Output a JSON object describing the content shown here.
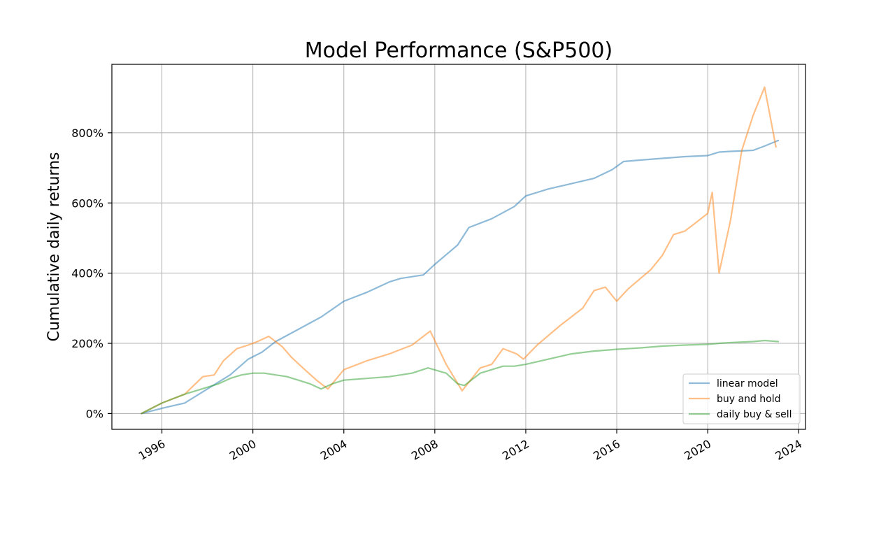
{
  "chart_data": {
    "type": "line",
    "title": "Model Performance (S&P500)",
    "xlabel": "",
    "ylabel": "Cumulative daily returns",
    "xlim": [
      1993.8,
      2024.3
    ],
    "ylim": [
      -0.45,
      9.95
    ],
    "x_ticks": [
      1996,
      2000,
      2004,
      2008,
      2012,
      2016,
      2020,
      2024
    ],
    "x_tick_labels": [
      "1996",
      "2000",
      "2004",
      "2008",
      "2012",
      "2016",
      "2020",
      "2024"
    ],
    "y_ticks": [
      0,
      2,
      4,
      6,
      8
    ],
    "y_tick_labels": [
      "0%",
      "200%",
      "400%",
      "600%",
      "800%"
    ],
    "grid": true,
    "legend_position": "lower-right",
    "series": [
      {
        "name": "linear model",
        "color": "#1f77b4",
        "x": [
          1995.1,
          1996.0,
          1997.0,
          1998.0,
          1999.0,
          1999.8,
          2000.4,
          2001.0,
          2002.0,
          2003.0,
          2004.0,
          2005.0,
          2006.0,
          2006.5,
          2007.5,
          2008.0,
          2009.0,
          2009.5,
          2010.5,
          2011.5,
          2012.0,
          2013.0,
          2014.0,
          2015.0,
          2015.8,
          2016.3,
          2017.0,
          2018.0,
          2019.0,
          2020.0,
          2020.5,
          2021.0,
          2022.0,
          2022.5,
          2023.1
        ],
        "y": [
          0.0,
          0.15,
          0.3,
          0.7,
          1.1,
          1.55,
          1.75,
          2.05,
          2.4,
          2.75,
          3.2,
          3.45,
          3.75,
          3.85,
          3.95,
          4.25,
          4.8,
          5.3,
          5.55,
          5.9,
          6.2,
          6.4,
          6.55,
          6.7,
          6.95,
          7.18,
          7.22,
          7.27,
          7.32,
          7.35,
          7.45,
          7.47,
          7.5,
          7.62,
          7.78
        ]
      },
      {
        "name": "buy and hold",
        "color": "#ff7f0e",
        "x": [
          1995.1,
          1996.0,
          1997.0,
          1997.8,
          1998.3,
          1998.7,
          1999.3,
          1999.8,
          2000.2,
          2000.7,
          2001.3,
          2001.7,
          2002.2,
          2002.8,
          2003.3,
          2004.0,
          2005.0,
          2006.0,
          2007.0,
          2007.8,
          2008.5,
          2009.2,
          2010.0,
          2010.5,
          2011.0,
          2011.6,
          2011.9,
          2012.5,
          2013.5,
          2014.5,
          2015.0,
          2015.5,
          2016.0,
          2016.5,
          2017.5,
          2018.0,
          2018.5,
          2019.0,
          2019.5,
          2020.0,
          2020.2,
          2020.5,
          2021.0,
          2021.5,
          2022.0,
          2022.5,
          2023.0
        ],
        "y": [
          0.0,
          0.3,
          0.55,
          1.05,
          1.1,
          1.5,
          1.85,
          1.95,
          2.05,
          2.2,
          1.9,
          1.6,
          1.3,
          0.95,
          0.7,
          1.25,
          1.5,
          1.7,
          1.95,
          2.35,
          1.4,
          0.65,
          1.3,
          1.4,
          1.85,
          1.7,
          1.55,
          1.95,
          2.5,
          3.0,
          3.5,
          3.6,
          3.2,
          3.55,
          4.1,
          4.5,
          5.1,
          5.2,
          5.45,
          5.7,
          6.3,
          4.0,
          5.5,
          7.5,
          8.5,
          9.3,
          7.6
        ]
      },
      {
        "name": "daily buy & sell",
        "color": "#2ca02c",
        "x": [
          1995.1,
          1996.0,
          1997.0,
          1998.0,
          1998.5,
          1999.0,
          1999.5,
          2000.0,
          2000.5,
          2001.0,
          2001.5,
          2002.0,
          2002.5,
          2003.0,
          2003.5,
          2004.0,
          2005.0,
          2006.0,
          2007.0,
          2007.7,
          2008.5,
          2009.0,
          2009.3,
          2010.0,
          2010.5,
          2011.0,
          2011.5,
          2012.0,
          2013.0,
          2014.0,
          2015.0,
          2016.0,
          2017.0,
          2018.0,
          2019.0,
          2020.0,
          2020.5,
          2021.0,
          2022.0,
          2022.5,
          2023.1
        ],
        "y": [
          0.0,
          0.3,
          0.55,
          0.75,
          0.85,
          1.0,
          1.1,
          1.15,
          1.15,
          1.1,
          1.05,
          0.95,
          0.85,
          0.7,
          0.85,
          0.95,
          1.0,
          1.05,
          1.15,
          1.3,
          1.15,
          0.85,
          0.8,
          1.15,
          1.25,
          1.35,
          1.35,
          1.4,
          1.55,
          1.7,
          1.78,
          1.83,
          1.87,
          1.92,
          1.95,
          1.97,
          2.0,
          2.02,
          2.05,
          2.08,
          2.05
        ]
      }
    ]
  }
}
